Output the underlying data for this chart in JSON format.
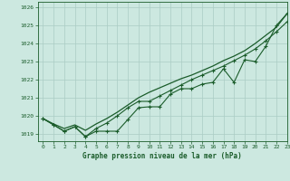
{
  "title": "Graphe pression niveau de la mer (hPa)",
  "background_color": "#cce8e0",
  "grid_color": "#aaccc4",
  "line_color": "#1a5c2a",
  "xlim": [
    -0.5,
    23
  ],
  "ylim": [
    1018.6,
    1026.3
  ],
  "yticks": [
    1019,
    1020,
    1021,
    1022,
    1023,
    1024,
    1025,
    1026
  ],
  "xticks": [
    0,
    1,
    2,
    3,
    4,
    5,
    6,
    7,
    8,
    9,
    10,
    11,
    12,
    13,
    14,
    15,
    16,
    17,
    18,
    19,
    20,
    21,
    22,
    23
  ],
  "hours": [
    0,
    1,
    2,
    3,
    4,
    5,
    6,
    7,
    8,
    9,
    10,
    11,
    12,
    13,
    14,
    15,
    16,
    17,
    18,
    19,
    20,
    21,
    22,
    23
  ],
  "line1_jagged": [
    1019.85,
    1019.5,
    1019.15,
    1019.4,
    1018.85,
    1019.15,
    1019.15,
    1019.15,
    1019.8,
    1020.45,
    1020.5,
    1020.5,
    1021.2,
    1021.5,
    1021.5,
    1021.75,
    1021.85,
    1022.6,
    1021.85,
    1023.1,
    1023.0,
    1023.85,
    1025.0,
    1025.65
  ],
  "line2_smooth": [
    1019.85,
    1019.55,
    1019.3,
    1019.5,
    1019.2,
    1019.55,
    1019.85,
    1020.2,
    1020.6,
    1021.0,
    1021.3,
    1021.55,
    1021.8,
    1022.05,
    1022.25,
    1022.5,
    1022.75,
    1023.05,
    1023.3,
    1023.6,
    1024.0,
    1024.45,
    1024.9,
    1025.65
  ],
  "line3_upper": [
    1019.85,
    1019.5,
    1019.15,
    1019.4,
    1018.85,
    1019.3,
    1019.6,
    1020.0,
    1020.45,
    1020.8,
    1020.8,
    1021.1,
    1021.4,
    1021.7,
    1022.0,
    1022.25,
    1022.5,
    1022.75,
    1023.05,
    1023.35,
    1023.7,
    1024.15,
    1024.65,
    1025.2
  ]
}
